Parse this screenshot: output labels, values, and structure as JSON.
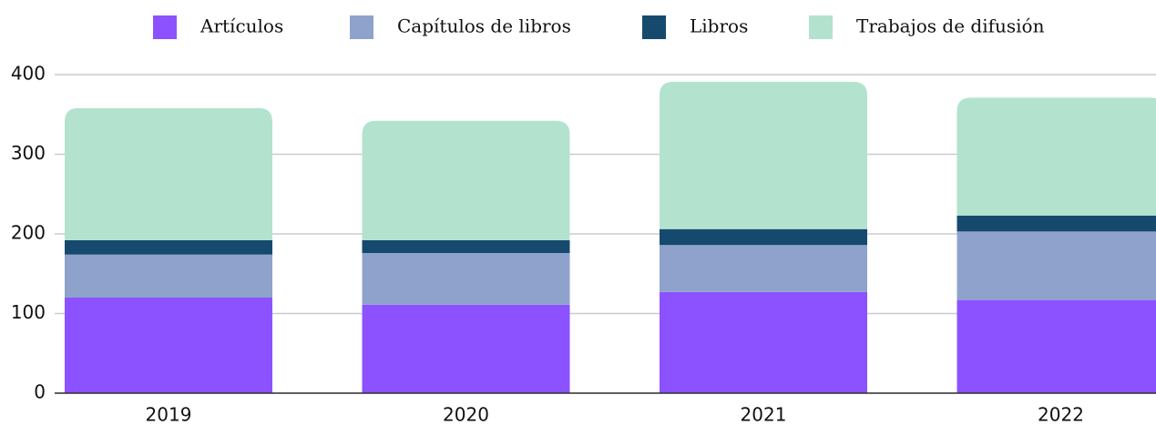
{
  "chart_data": {
    "type": "stacked_bar",
    "categories": [
      "2019",
      "2020",
      "2021",
      "2022"
    ],
    "series": [
      {
        "name": "Artículos",
        "color": "#8c52ff",
        "values": [
          120,
          111,
          127,
          117
        ]
      },
      {
        "name": "Capítulos de libros",
        "color": "#8fa2cc",
        "values": [
          54,
          65,
          59,
          86
        ]
      },
      {
        "name": "Libros",
        "color": "#154a6e",
        "values": [
          18,
          16,
          20,
          20
        ]
      },
      {
        "name": "Trabajos de difusión",
        "color": "#b3e3ce",
        "values": [
          166,
          150,
          185,
          148
        ]
      }
    ],
    "ylim": [
      0,
      400
    ],
    "yticks": [
      0,
      100,
      200,
      300,
      400
    ],
    "grid": true,
    "legend": "top"
  }
}
